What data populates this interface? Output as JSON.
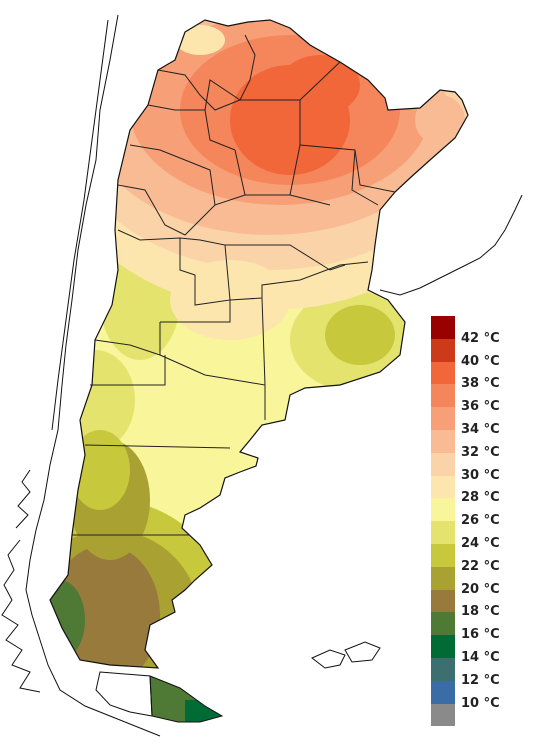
{
  "legend": {
    "items": [
      {
        "label": "42 °C",
        "color": "#990000"
      },
      {
        "label": "40 °C",
        "color": "#cc3a1a"
      },
      {
        "label": "38 °C",
        "color": "#f2673a"
      },
      {
        "label": "36 °C",
        "color": "#f5855a"
      },
      {
        "label": "34 °C",
        "color": "#f7a078"
      },
      {
        "label": "32 °C",
        "color": "#f9bb94"
      },
      {
        "label": "30 °C",
        "color": "#fbd3a8"
      },
      {
        "label": "28 °C",
        "color": "#fce6ad"
      },
      {
        "label": "26 °C",
        "color": "#f9f59a"
      },
      {
        "label": "24 °C",
        "color": "#e3e36e"
      },
      {
        "label": "22 °C",
        "color": "#c8c83c"
      },
      {
        "label": "20 °C",
        "color": "#aaa133"
      },
      {
        "label": "18 °C",
        "color": "#987a3d"
      },
      {
        "label": "16 °C",
        "color": "#4f7a35"
      },
      {
        "label": "14 °C",
        "color": "#006b35"
      },
      {
        "label": "12 °C",
        "color": "#3d6e70"
      },
      {
        "label": "10 °C",
        "color": "#3a6da6"
      },
      {
        "label": "",
        "color": "#8a8a8a"
      }
    ]
  }
}
